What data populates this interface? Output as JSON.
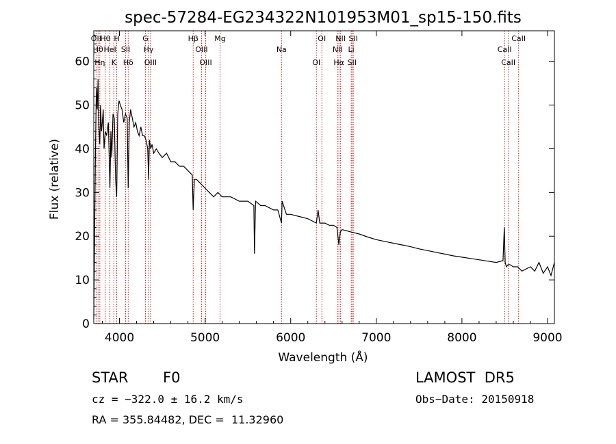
{
  "chart_data": {
    "type": "line",
    "title": "spec-57284-EG234322N101953M01_sp15-150.fits",
    "xlabel": "Wavelength (Å)",
    "ylabel": "Flux (relative)",
    "xlim": [
      3700,
      9080
    ],
    "ylim": [
      0,
      67
    ],
    "xticks": [
      4000,
      5000,
      6000,
      7000,
      8000,
      9000
    ],
    "xtick_labels": [
      "4000",
      "5000",
      "6000",
      "7000",
      "8000",
      "9000"
    ],
    "yticks": [
      0,
      10,
      20,
      30,
      40,
      50,
      60
    ],
    "ytick_labels": [
      "0",
      "10",
      "20",
      "30",
      "40",
      "50",
      "60"
    ],
    "grid": false,
    "series": [
      {
        "x": [
          3700,
          3710,
          3720,
          3730,
          3740,
          3750,
          3760,
          3770,
          3780,
          3790,
          3800,
          3810,
          3820,
          3835,
          3850,
          3870,
          3889,
          3900,
          3910,
          3925,
          3940,
          3955,
          3968,
          3980,
          3995,
          4010,
          4030,
          4050,
          4070,
          4090,
          4102,
          4115,
          4130,
          4150,
          4170,
          4190,
          4210,
          4230,
          4250,
          4270,
          4290,
          4310,
          4330,
          4340,
          4350,
          4365,
          4380,
          4400,
          4430,
          4460,
          4500,
          4550,
          4600,
          4650,
          4700,
          4750,
          4800,
          4850,
          4861,
          4875,
          4900,
          4950,
          5000,
          5050,
          5100,
          5150,
          5200,
          5250,
          5300,
          5400,
          5500,
          5570,
          5577,
          5590,
          5650,
          5700,
          5800,
          5850,
          5893,
          5900,
          5950,
          6000,
          6100,
          6200,
          6250,
          6300,
          6320,
          6340,
          6400,
          6450,
          6500,
          6540,
          6563,
          6580,
          6600,
          6700,
          6800,
          6900,
          7000,
          7100,
          7200,
          7300,
          7400,
          7500,
          7600,
          7700,
          7800,
          7900,
          8000,
          8100,
          8200,
          8300,
          8400,
          8480,
          8495,
          8505,
          8520,
          8540,
          8560,
          8600,
          8650,
          8700,
          8750,
          8800,
          8850,
          8900,
          8950,
          9000,
          9040,
          9080
        ],
        "y": [
          1,
          22,
          40,
          54,
          49,
          56,
          45,
          41,
          50,
          44,
          46,
          49,
          40,
          44,
          43,
          46,
          31,
          44,
          38,
          48,
          47,
          33,
          29,
          48,
          51,
          50,
          49,
          46,
          48,
          47,
          31,
          46,
          49,
          47,
          45,
          46,
          44,
          43,
          45,
          43,
          43,
          42,
          40,
          33,
          42,
          40,
          41,
          39,
          40,
          39,
          38,
          39,
          37,
          37,
          36,
          36,
          35,
          34,
          26,
          33,
          33,
          32,
          31,
          30,
          29,
          30,
          29,
          29,
          29,
          28,
          28,
          27,
          16,
          28,
          27,
          27,
          26,
          26,
          23,
          28,
          25,
          25,
          24.5,
          24,
          23.5,
          23,
          26,
          23,
          23,
          22.5,
          22.5,
          22,
          18,
          21,
          21.5,
          21,
          20.5,
          19.8,
          19.2,
          18.8,
          18.4,
          18,
          17.6,
          17.1,
          16.7,
          16.3,
          15.9,
          15.5,
          15.2,
          14.9,
          14.6,
          14.3,
          14,
          14.4,
          22,
          14,
          13,
          13.5,
          13.5,
          13,
          13,
          12,
          12.5,
          13,
          12,
          14,
          11.5,
          13,
          11,
          14
        ]
      }
    ],
    "lines": [
      {
        "x": 3727,
        "label": "OII"
      },
      {
        "x": 3750,
        "label": "Hθ"
      },
      {
        "x": 3771,
        "label": "Hη"
      },
      {
        "x": 3835,
        "label": "Hθ"
      },
      {
        "x": 3889,
        "label": "HeI"
      },
      {
        "x": 3934,
        "label": "K"
      },
      {
        "x": 3968,
        "label": "H"
      },
      {
        "x": 4072,
        "label": "SII"
      },
      {
        "x": 4102,
        "label": "Hδ"
      },
      {
        "x": 4304,
        "label": "G"
      },
      {
        "x": 4340,
        "label": "Hγ"
      },
      {
        "x": 4363,
        "label": "OIII"
      },
      {
        "x": 4861,
        "label": "Hβ"
      },
      {
        "x": 4959,
        "label": "OIII"
      },
      {
        "x": 5007,
        "label": "OIII"
      },
      {
        "x": 5175,
        "label": "Mg"
      },
      {
        "x": 5893,
        "label": "Na"
      },
      {
        "x": 6300,
        "label": "OI"
      },
      {
        "x": 6364,
        "label": "OI"
      },
      {
        "x": 6548,
        "label": "NII"
      },
      {
        "x": 6563,
        "label": "Hα"
      },
      {
        "x": 6583,
        "label": "NII"
      },
      {
        "x": 6707,
        "label": "Li"
      },
      {
        "x": 6716,
        "label": "SII"
      },
      {
        "x": 6731,
        "label": "SII"
      },
      {
        "x": 8498,
        "label": "CaII"
      },
      {
        "x": 8542,
        "label": "CaII"
      },
      {
        "x": 8662,
        "label": "CaII"
      }
    ]
  },
  "info": {
    "object_class": "STAR",
    "subclass": "F0",
    "survey": "LAMOST  DR5",
    "cz": "cz = −322.0 ± 16.2 km/s",
    "obs_date": "Obs−Date: 20150918",
    "coords": "RA = 355.84482, DEC =  11.32960"
  },
  "colors": {
    "spectrum": "#000000",
    "line_markers": "#cc0000",
    "axes": "#000000",
    "background": "#ffffff"
  }
}
